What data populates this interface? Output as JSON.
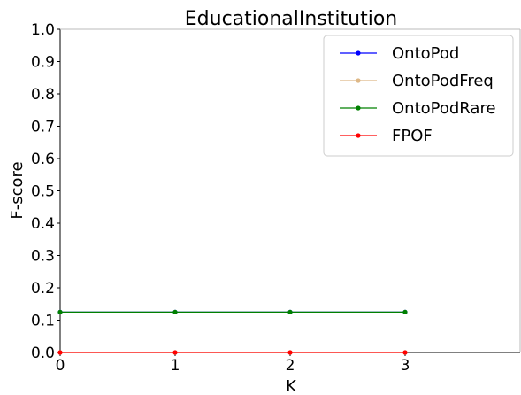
{
  "chart_data": {
    "type": "line",
    "title": "EducationalInstitution",
    "xlabel": "K",
    "ylabel": "F-score",
    "x": [
      0,
      1,
      2,
      3
    ],
    "xlim": [
      0,
      4
    ],
    "ylim": [
      0,
      1
    ],
    "xticks": [
      "0",
      "1",
      "2",
      "3"
    ],
    "yticks": [
      "0.0",
      "0.1",
      "0.2",
      "0.3",
      "0.4",
      "0.5",
      "0.6",
      "0.7",
      "0.8",
      "0.9",
      "1.0"
    ],
    "grid": false,
    "legend_position": "top-right",
    "series": [
      {
        "name": "OntoPod",
        "values": [
          0.125,
          0.125,
          0.125,
          0.125
        ],
        "color": "#0000ff"
      },
      {
        "name": "OntoPodFreq",
        "values": [
          0.0,
          0.0,
          0.0,
          0.0
        ],
        "color": "#deb887"
      },
      {
        "name": "OntoPodRare",
        "values": [
          0.125,
          0.125,
          0.125,
          0.125
        ],
        "color": "#008000"
      },
      {
        "name": "FPOF",
        "values": [
          0.0,
          0.0,
          0.0,
          0.0
        ],
        "color": "#ff0000"
      }
    ]
  }
}
